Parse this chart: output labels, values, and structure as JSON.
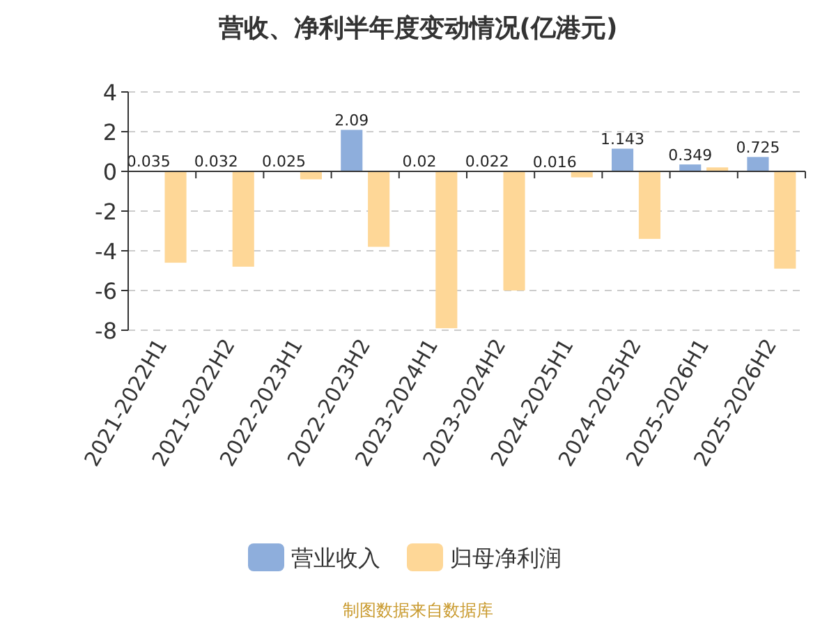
{
  "chart_data": {
    "type": "bar",
    "title": "营收、净利半年度变动情况(亿港元)",
    "categories": [
      "2021-2022H1",
      "2021-2022H2",
      "2022-2023H1",
      "2022-2023H2",
      "2023-2024H1",
      "2023-2024H2",
      "2024-2025H1",
      "2024-2025H2",
      "2025-2026H1",
      "2025-2026H2"
    ],
    "series": [
      {
        "name": "营业收入",
        "color": "#8eaedc",
        "values": [
          0.035,
          0.032,
          0.025,
          2.09,
          0.02,
          0.022,
          0.016,
          1.143,
          0.349,
          0.725
        ],
        "value_labels": [
          "0.035",
          "0.032",
          "0.025",
          "2.09",
          "0.02",
          "0.022",
          "0.016",
          "1.143",
          "0.349",
          "0.725"
        ]
      },
      {
        "name": "归母净利润",
        "color": "#fed797",
        "values": [
          -4.6,
          -4.8,
          -0.4,
          -3.8,
          -7.9,
          -6.0,
          -0.3,
          -3.4,
          0.2,
          -4.9
        ]
      }
    ],
    "ylim": [
      -8,
      4
    ],
    "yticks": [
      -8,
      -6,
      -4,
      -2,
      0,
      2,
      4
    ],
    "grid": "y",
    "legend": "bottom",
    "annotations": [
      "制图数据来自数据库"
    ]
  }
}
